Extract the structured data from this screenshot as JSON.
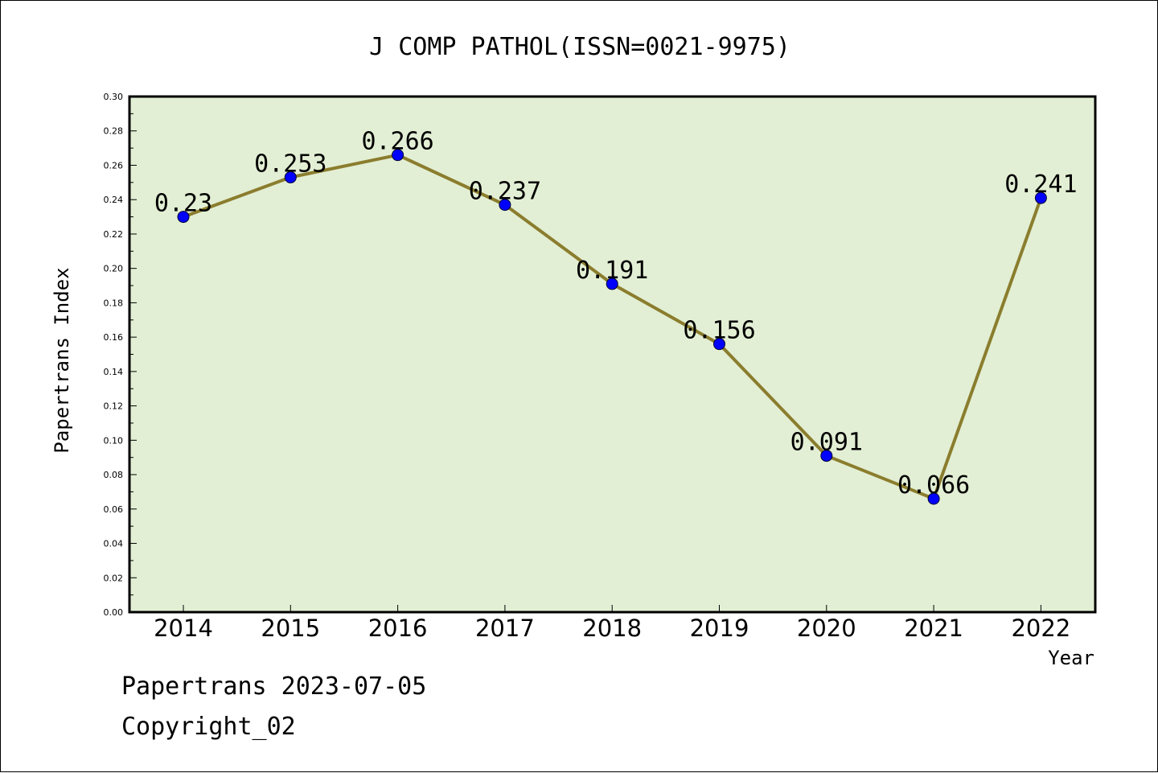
{
  "chart_data": {
    "type": "line",
    "title": "J COMP PATHOL(ISSN=0021-9975)",
    "xlabel": "Year",
    "ylabel": "Papertrans Index",
    "categories": [
      "2014",
      "2015",
      "2016",
      "2017",
      "2018",
      "2019",
      "2020",
      "2021",
      "2022"
    ],
    "values": [
      0.23,
      0.253,
      0.266,
      0.237,
      0.191,
      0.156,
      0.091,
      0.066,
      0.241
    ],
    "data_labels": [
      "0.23",
      "0.253",
      "0.266",
      "0.237",
      "0.191",
      "0.156",
      "0.091",
      "0.066",
      "0.241"
    ],
    "ylim": [
      0,
      0.3
    ],
    "yticks": [
      "0.00",
      "0.02",
      "0.04",
      "0.06",
      "0.08",
      "0.10",
      "0.12",
      "0.14",
      "0.16",
      "0.18",
      "0.20",
      "0.22",
      "0.24",
      "0.26",
      "0.28",
      "0.30"
    ],
    "grid": false,
    "colors": {
      "plot_background": "#e2efd4",
      "line": "#8b7d2e",
      "marker": "#0000ff"
    }
  },
  "footer": {
    "date_line": "Papertrans 2023-07-05",
    "copyright_line": "Copyright_02"
  }
}
